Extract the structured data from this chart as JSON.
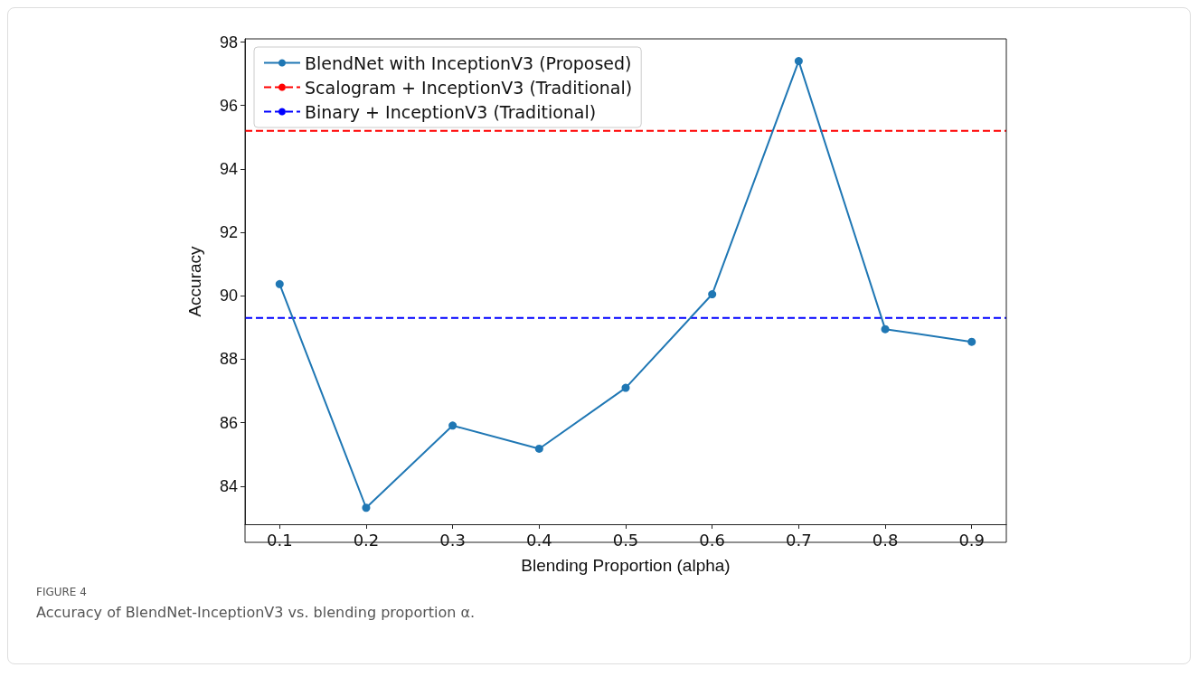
{
  "chart_data": {
    "type": "line",
    "xlabel": "Blending Proportion (alpha)",
    "ylabel": "Accuracy",
    "x": [
      0.1,
      0.2,
      0.3,
      0.4,
      0.5,
      0.6,
      0.7,
      0.8,
      0.9
    ],
    "series": [
      {
        "name": "BlendNet with InceptionV3 (Proposed)",
        "color": "#1f77b4",
        "values": [
          90.37,
          83.32,
          85.91,
          85.18,
          87.1,
          90.05,
          97.4,
          88.95,
          88.55
        ]
      }
    ],
    "marker": "circle",
    "line_style": "solid",
    "ref_lines": [
      {
        "axis": "y",
        "value": 95.2,
        "label": "Scalogram + InceptionV3 (Traditional)",
        "color": "#ff0000",
        "line_style": "dashed"
      },
      {
        "axis": "y",
        "value": 89.3,
        "label": "Binary + InceptionV3 (Traditional)",
        "color": "#0000ff",
        "line_style": "dashed"
      }
    ],
    "xlim": [
      0.06,
      0.94
    ],
    "xticks": [
      0.1,
      0.2,
      0.3,
      0.4,
      0.5,
      0.6,
      0.7,
      0.8,
      0.9
    ],
    "ylim": [
      82.8,
      98.1
    ],
    "yticks": [
      84,
      86,
      88,
      90,
      92,
      94,
      96,
      98
    ],
    "grid": false,
    "legend": "top left",
    "annotations": [
      "FIGURE 4",
      "Accuracy of BlendNet-InceptionV3 vs. blending proportion α."
    ]
  }
}
